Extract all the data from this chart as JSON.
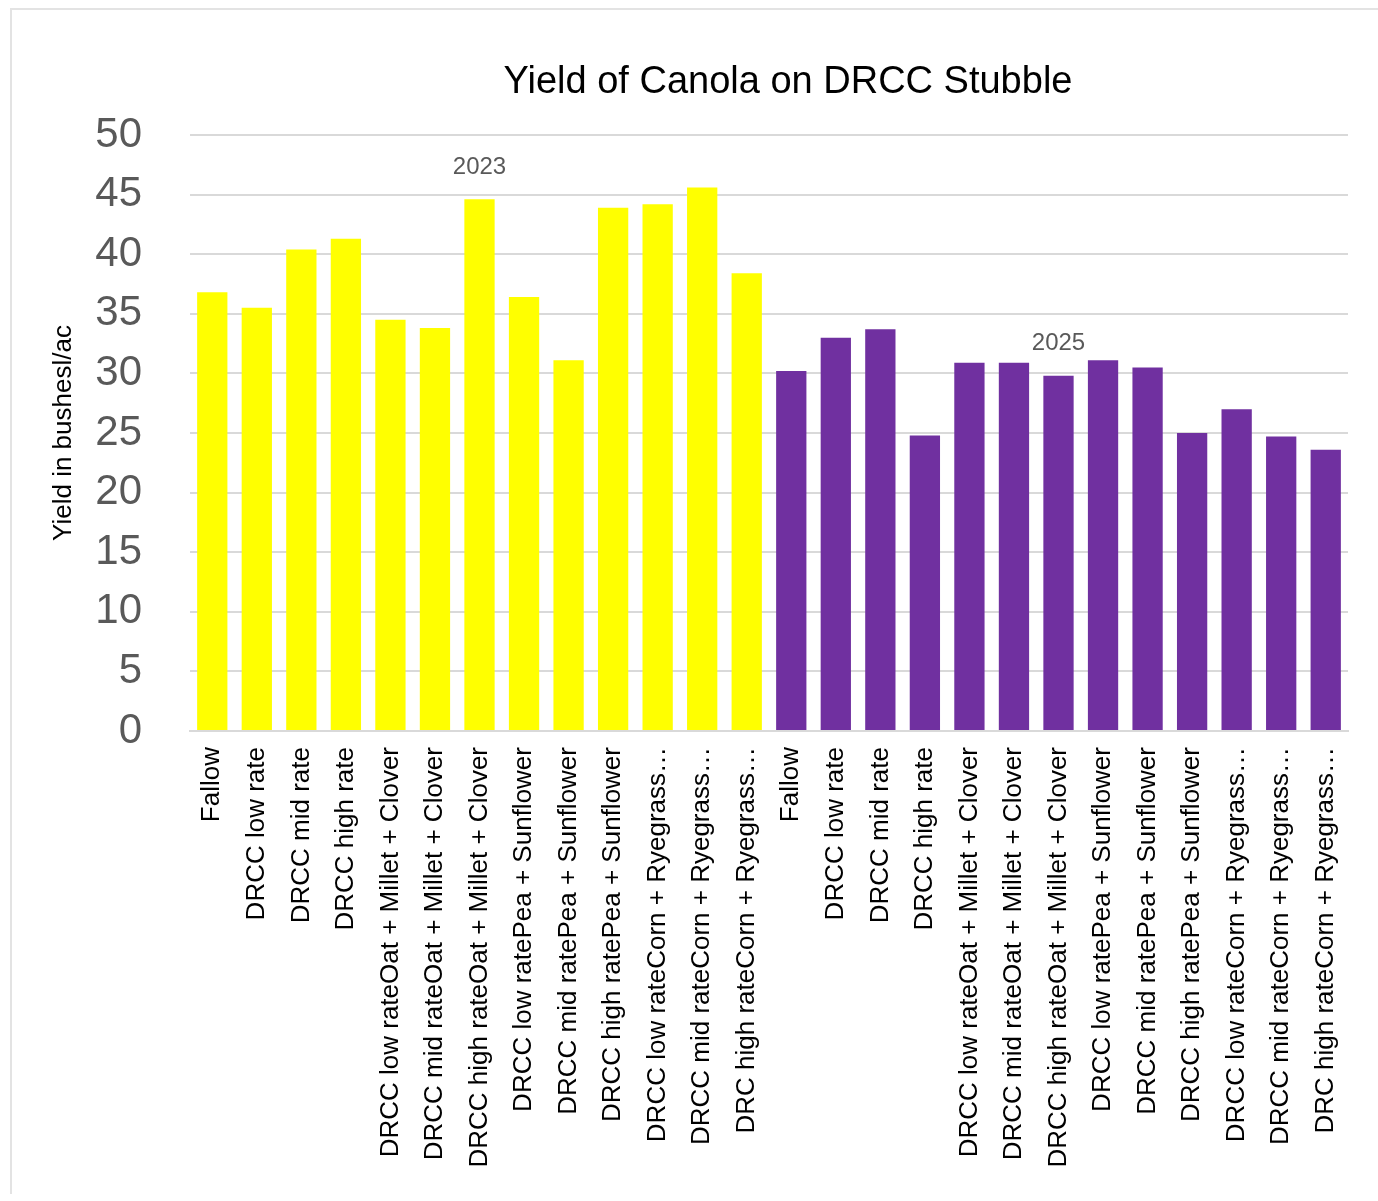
{
  "chart_data": {
    "type": "bar",
    "title": "Yield of Canola on DRCC Stubble",
    "ylabel": "Yield in bushesl/ac",
    "categories": [
      "Fallow",
      "DRCC low rate",
      "DRCC mid rate",
      "DRCC high rate",
      "DRCC low rateOat + Millet + Clover",
      "DRCC mid rateOat + Millet + Clover",
      "DRCC high rateOat + Millet + Clover",
      "DRCC low ratePea + Sunflower",
      "DRCC mid ratePea + Sunflower",
      "DRCC high ratePea + Sunflower",
      "DRCC low rateCorn + Ryegrass…",
      "DRCC mid rateCorn + Ryegrass…",
      "DRC high rateCorn + Ryegrass…",
      "Fallow",
      "DRCC low rate",
      "DRCC mid rate",
      "DRCC high rate",
      "DRCC low rateOat + Millet + Clover",
      "DRCC mid rateOat + Millet + Clover",
      "DRCC high rateOat + Millet + Clover",
      "DRCC low ratePea + Sunflower",
      "DRCC mid ratePea + Sunflower",
      "DRCC high ratePea + Sunflower",
      "DRCC low rateCorn + Ryegrass…",
      "DRCC mid rateCorn + Ryegrass…",
      "DRC high rateCorn + Ryegrass…"
    ],
    "series": [
      {
        "name": "2023",
        "color": "#ffff00",
        "values": [
          36.8,
          35.5,
          40.4,
          41.3,
          34.5,
          33.8,
          44.6,
          36.4,
          31.1,
          43.9,
          44.2,
          45.6,
          38.4,
          null,
          null,
          null,
          null,
          null,
          null,
          null,
          null,
          null,
          null,
          null,
          null,
          null
        ]
      },
      {
        "name": "2025",
        "color": "#7030a0",
        "values": [
          null,
          null,
          null,
          null,
          null,
          null,
          null,
          null,
          null,
          null,
          null,
          null,
          null,
          30.2,
          33.0,
          33.7,
          24.8,
          30.9,
          30.9,
          29.8,
          31.1,
          30.5,
          25.0,
          27.0,
          24.7,
          23.6
        ]
      }
    ],
    "ylim": [
      0,
      50
    ],
    "yticks": [
      0,
      5,
      10,
      15,
      20,
      25,
      30,
      35,
      40,
      45,
      50
    ],
    "grid": "y"
  }
}
